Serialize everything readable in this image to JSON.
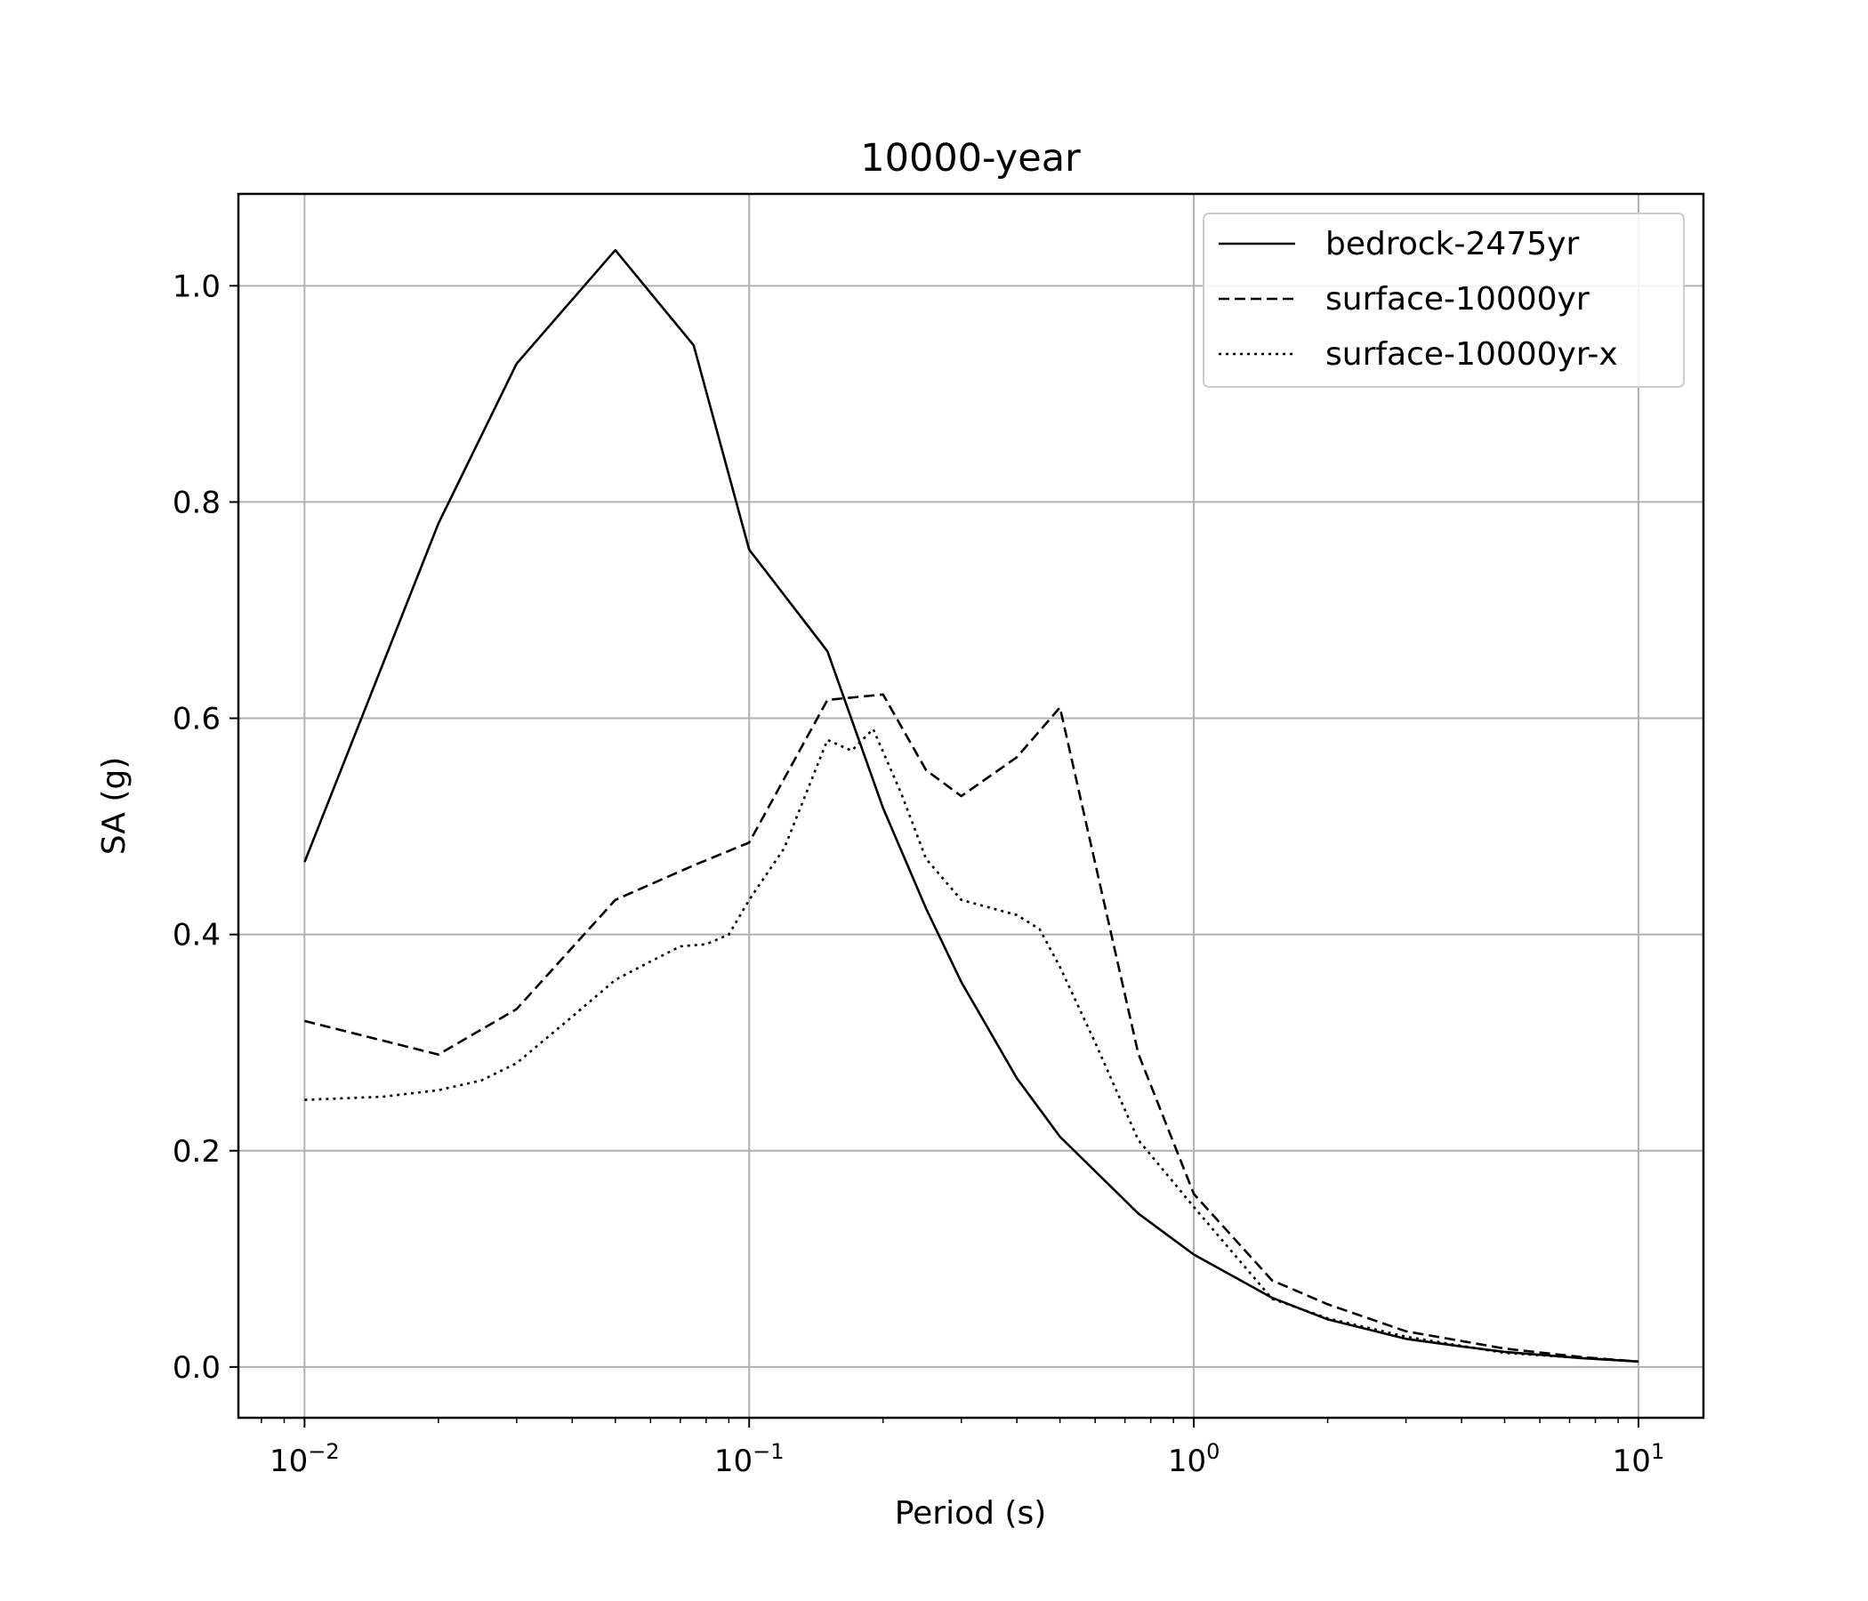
{
  "chart_data": {
    "type": "line",
    "title": "10000-year",
    "xlabel": "Period (s)",
    "ylabel": "SA (g)",
    "xscale": "log",
    "xlim": [
      0.0071,
      14
    ],
    "ylim": [
      -0.047,
      1.085
    ],
    "grid": true,
    "legend_position": "top-right",
    "x_ticks": [
      {
        "value": 0.01,
        "base": "10",
        "exp": "−2"
      },
      {
        "value": 0.1,
        "base": "10",
        "exp": "−1"
      },
      {
        "value": 1,
        "base": "10",
        "exp": "0"
      },
      {
        "value": 10,
        "base": "10",
        "exp": "1"
      }
    ],
    "y_ticks": [
      "0.0",
      "0.2",
      "0.4",
      "0.6",
      "0.8",
      "1.0"
    ],
    "series": [
      {
        "name": "bedrock-2475yr",
        "style": "solid",
        "color": "#000000",
        "x": [
          0.01,
          0.02,
          0.03,
          0.05,
          0.075,
          0.1,
          0.15,
          0.2,
          0.25,
          0.3,
          0.4,
          0.5,
          0.75,
          1.0,
          1.5,
          2.0,
          3.0,
          4.0,
          5.0,
          7.5,
          10.0
        ],
        "y": [
          0.467,
          0.78,
          0.928,
          1.033,
          0.945,
          0.756,
          0.662,
          0.517,
          0.424,
          0.356,
          0.267,
          0.213,
          0.142,
          0.104,
          0.064,
          0.044,
          0.026,
          0.019,
          0.014,
          0.008,
          0.005
        ]
      },
      {
        "name": "surface-10000yr",
        "style": "dashed",
        "color": "#000000",
        "x": [
          0.01,
          0.02,
          0.03,
          0.05,
          0.075,
          0.1,
          0.15,
          0.2,
          0.25,
          0.3,
          0.4,
          0.5,
          0.75,
          1.0,
          1.5,
          2.0,
          3.0,
          4.0,
          5.0,
          7.5,
          10.0
        ],
        "y": [
          0.32,
          0.289,
          0.331,
          0.432,
          0.464,
          0.485,
          0.617,
          0.622,
          0.552,
          0.528,
          0.564,
          0.61,
          0.29,
          0.16,
          0.08,
          0.058,
          0.033,
          0.024,
          0.017,
          0.009,
          0.005
        ]
      },
      {
        "name": "surface-10000yr-x",
        "style": "dotted",
        "color": "#000000",
        "x": [
          0.01,
          0.015,
          0.02,
          0.025,
          0.03,
          0.04,
          0.05,
          0.06,
          0.07,
          0.08,
          0.09,
          0.1,
          0.12,
          0.15,
          0.17,
          0.19,
          0.22,
          0.25,
          0.3,
          0.4,
          0.45,
          0.5,
          0.6,
          0.75,
          1.0,
          1.5,
          2.0,
          3.0,
          5.0,
          10.0
        ],
        "y": [
          0.247,
          0.25,
          0.256,
          0.265,
          0.281,
          0.324,
          0.358,
          0.375,
          0.389,
          0.391,
          0.4,
          0.432,
          0.48,
          0.58,
          0.57,
          0.59,
          0.53,
          0.47,
          0.432,
          0.418,
          0.405,
          0.37,
          0.3,
          0.21,
          0.148,
          0.063,
          0.045,
          0.028,
          0.013,
          0.005
        ]
      }
    ]
  }
}
